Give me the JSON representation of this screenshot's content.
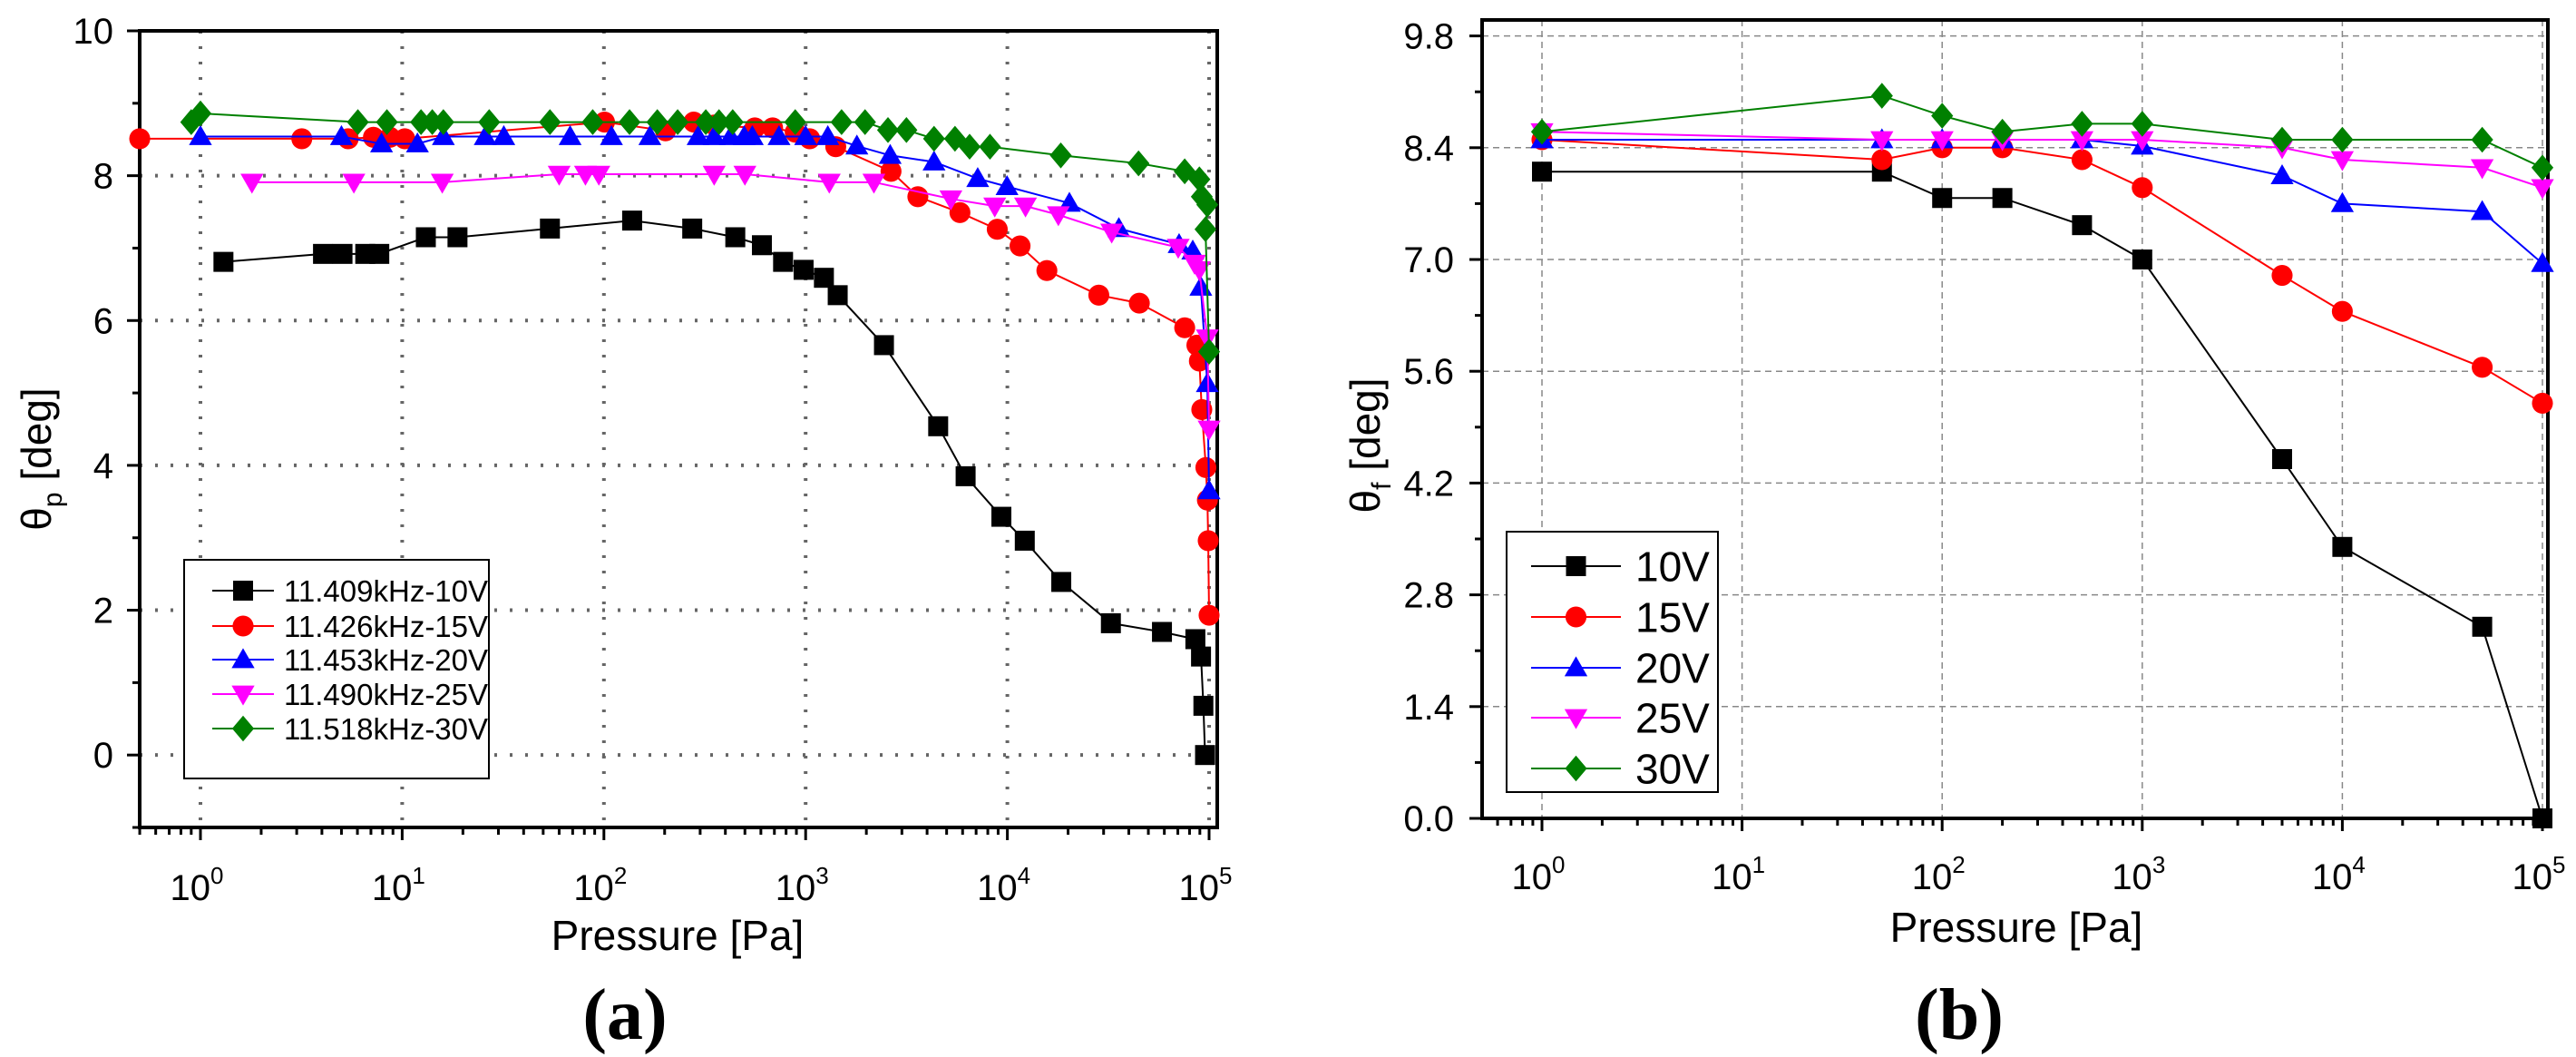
{
  "chart_data": [
    {
      "type": "line",
      "panel_label": "(a)",
      "xlabel": "Pressure [Pa]",
      "ylabel": "θp [deg]",
      "ylabel_main": "θ",
      "ylabel_sub": "p",
      "ylabel_unit": " [deg]",
      "xscale": "log",
      "xlim": [
        0.5,
        110000
      ],
      "ylim": [
        -1,
        10
      ],
      "yticks": [
        0,
        2,
        4,
        6,
        8,
        10
      ],
      "xtick_exponents": [
        0,
        1,
        2,
        3,
        4,
        5
      ],
      "xtick_base": "10",
      "grid": "dotted",
      "legend_position": "bottom-left",
      "series": [
        {
          "name": "11.409kHz-10V",
          "color": "#000000",
          "marker": "square",
          "x": [
            1.3,
            4.05,
            5.06,
            6.56,
            7.7,
            13.1,
            18.8,
            54,
            138,
            274,
            448,
            607,
            773,
            977,
            1232,
            1442,
            2445,
            4540,
            6210,
            9340,
            12200,
            18500,
            32600,
            58400,
            85500,
            91200,
            93700,
            95500
          ],
          "y": [
            6.81,
            6.92,
            6.92,
            6.92,
            6.92,
            7.15,
            7.15,
            7.27,
            7.38,
            7.27,
            7.15,
            7.04,
            6.81,
            6.7,
            6.59,
            6.35,
            5.66,
            4.54,
            3.85,
            3.29,
            2.96,
            2.39,
            1.82,
            1.7,
            1.6,
            1.36,
            0.68,
            0.0
          ]
        },
        {
          "name": "11.426kHz-15V",
          "color": "#ff0000",
          "marker": "circle",
          "x": [
            0.5,
            3.18,
            5.4,
            7.2,
            8.7,
            10.3,
            100.7,
            202,
            279,
            352,
            560,
            686,
            888,
            1048,
            1410,
            2650,
            3600,
            5820,
            8910,
            11560,
            15700,
            28400,
            45100,
            75700,
            87000,
            89500,
            92000,
            96400,
            98100,
            99000,
            100000
          ],
          "y": [
            8.51,
            8.51,
            8.51,
            8.53,
            8.53,
            8.51,
            8.74,
            8.62,
            8.74,
            8.7,
            8.66,
            8.66,
            8.6,
            8.51,
            8.4,
            8.06,
            7.71,
            7.49,
            7.26,
            7.03,
            6.69,
            6.35,
            6.24,
            5.9,
            5.66,
            5.44,
            4.77,
            3.97,
            3.52,
            2.96,
            1.93
          ]
        },
        {
          "name": "11.453kHz-20V",
          "color": "#0000ff",
          "marker": "triangle-up",
          "x": [
            1,
            5,
            7.9,
            11.9,
            16,
            25.8,
            31.9,
            68,
            109,
            169,
            293,
            352,
            424,
            496,
            544,
            738,
            1000,
            1288,
            1795,
            2625,
            4330,
            7130,
            9960,
            20300,
            35700,
            71000,
            83000,
            91000,
            98000,
            100000
          ],
          "y": [
            8.54,
            8.54,
            8.44,
            8.44,
            8.54,
            8.54,
            8.54,
            8.54,
            8.54,
            8.54,
            8.54,
            8.54,
            8.54,
            8.54,
            8.54,
            8.54,
            8.54,
            8.54,
            8.41,
            8.28,
            8.19,
            7.96,
            7.85,
            7.62,
            7.27,
            7.05,
            6.96,
            6.46,
            5.13,
            3.65
          ]
        },
        {
          "name": "11.490kHz-25V",
          "color": "#ff00ff",
          "marker": "triangle-down",
          "x": [
            1.8,
            5.76,
            15.8,
            60,
            81,
            94.4,
            352,
            500,
            1310,
            2180,
            5250,
            8660,
            12300,
            17900,
            32900,
            70300,
            84700,
            89500,
            98000,
            100000
          ],
          "y": [
            7.91,
            7.91,
            7.91,
            8.02,
            8.02,
            8.02,
            8.02,
            8.02,
            7.91,
            7.91,
            7.68,
            7.58,
            7.58,
            7.46,
            7.22,
            7.01,
            6.79,
            6.7,
            5.76,
            4.5
          ]
        },
        {
          "name": "11.518kHz-30V",
          "color": "#008000",
          "marker": "diamond",
          "x": [
            0.9,
            1.0,
            6.03,
            8.4,
            12.4,
            14.1,
            16,
            27,
            54,
            88,
            134,
            184,
            232,
            320,
            372,
            435,
            888,
            1507,
            1970,
            2560,
            3160,
            4330,
            5500,
            6500,
            8200,
            18400,
            44700,
            75700,
            89500,
            92000,
            98000,
            96000,
            100000
          ],
          "y": [
            8.74,
            8.86,
            8.74,
            8.74,
            8.74,
            8.74,
            8.74,
            8.74,
            8.74,
            8.74,
            8.74,
            8.74,
            8.74,
            8.74,
            8.74,
            8.74,
            8.74,
            8.74,
            8.74,
            8.63,
            8.63,
            8.51,
            8.51,
            8.4,
            8.4,
            8.28,
            8.17,
            8.06,
            7.95,
            7.71,
            7.6,
            7.26,
            5.57
          ]
        }
      ]
    },
    {
      "type": "line",
      "panel_label": "(b)",
      "xlabel": "Pressure [Pa]",
      "ylabel": "θf [deg]",
      "ylabel_main": "θ",
      "ylabel_sub": "f",
      "ylabel_unit": " [deg]",
      "xscale": "log",
      "xlim": [
        0.5,
        110000
      ],
      "ylim": [
        0,
        10
      ],
      "yticks": [
        "0.0",
        "1.4",
        "2.8",
        "4.2",
        "5.6",
        "7.0",
        "8.4",
        "9.8"
      ],
      "xtick_exponents": [
        0,
        1,
        2,
        3,
        4,
        5
      ],
      "xtick_base": "10",
      "grid": "dashed",
      "legend_position": "bottom-left",
      "x": [
        1,
        50,
        100,
        200,
        500,
        1000,
        5000,
        10000,
        50000,
        100000
      ],
      "series": [
        {
          "name": "10V",
          "color": "#000000",
          "marker": "square",
          "y": [
            8.1,
            8.1,
            7.77,
            7.77,
            7.43,
            7.0,
            4.5,
            3.4,
            2.4,
            0.0
          ]
        },
        {
          "name": "15V",
          "color": "#ff0000",
          "marker": "circle",
          "y": [
            8.5,
            8.25,
            8.4,
            8.4,
            8.25,
            7.9,
            6.8,
            6.35,
            5.65,
            5.2
          ]
        },
        {
          "name": "20V",
          "color": "#0000ff",
          "marker": "triangle-up",
          "y": [
            8.5,
            8.5,
            8.5,
            8.5,
            8.5,
            8.42,
            8.05,
            7.7,
            7.6,
            6.95
          ]
        },
        {
          "name": "25V",
          "color": "#ff00ff",
          "marker": "triangle-down",
          "y": [
            8.6,
            8.5,
            8.5,
            8.5,
            8.5,
            8.5,
            8.4,
            8.25,
            8.15,
            7.9
          ]
        },
        {
          "name": "30V",
          "color": "#008000",
          "marker": "diamond",
          "y": [
            8.6,
            9.05,
            8.8,
            8.6,
            8.7,
            8.7,
            8.5,
            8.5,
            8.5,
            8.15
          ]
        }
      ]
    }
  ]
}
